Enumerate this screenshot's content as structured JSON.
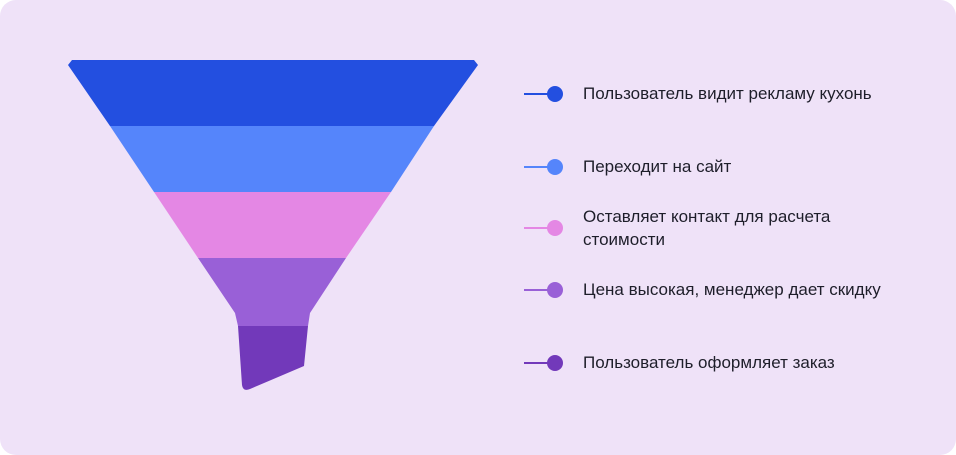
{
  "funnel": {
    "stages": [
      {
        "label": "Пользователь видит рекламу кухонь",
        "color": "#234fe0"
      },
      {
        "label": "Переходит на сайт",
        "color": "#5585fb"
      },
      {
        "label": "Оставляет контакт для расчета стоимости",
        "color": "#e487e4"
      },
      {
        "label": "Цена высокая, менеджер дает скидку",
        "color": "#9960d7"
      },
      {
        "label": "Пользователь оформляет заказ",
        "color": "#7239ba"
      }
    ]
  },
  "legend": {
    "items": [
      {
        "label": "Пользователь видит рекламу кухонь",
        "color": "#234fe0"
      },
      {
        "label": "Переходит на сайт",
        "color": "#5585fb"
      },
      {
        "label": "Оставляет контакт для расчета стоимости",
        "color": "#e487e4"
      },
      {
        "label": "Цена высокая, менеджер дает скидку",
        "color": "#9960d7"
      },
      {
        "label": "Пользователь оформляет заказ",
        "color": "#7239ba"
      }
    ]
  }
}
